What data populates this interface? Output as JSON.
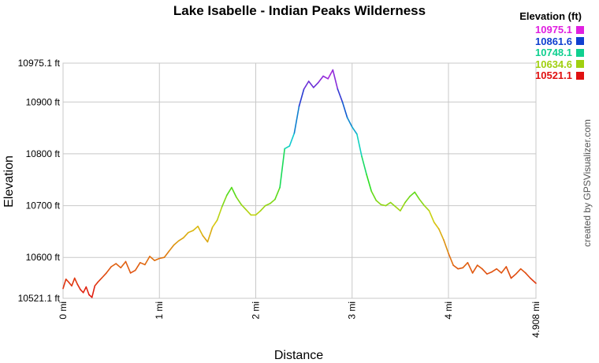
{
  "page": {
    "title": "Lake Isabelle - Indian Peaks Wilderness",
    "credit": "created by GPSVisualizer.com"
  },
  "legend": {
    "title": "Elevation (ft)",
    "items": [
      {
        "label": "10975.1",
        "color": "#e020e0"
      },
      {
        "label": "10861.6",
        "color": "#1040d0"
      },
      {
        "label": "10748.1",
        "color": "#10d090"
      },
      {
        "label": "10634.6",
        "color": "#a0d010"
      },
      {
        "label": "10521.1",
        "color": "#e01010"
      }
    ]
  },
  "chart_data": {
    "type": "line",
    "title": "Lake Isabelle - Indian Peaks Wilderness",
    "xlabel": "Distance",
    "ylabel": "Elevation",
    "xlim": [
      0,
      4.908
    ],
    "ylim": [
      10521.1,
      10975.1
    ],
    "x_ticks": [
      {
        "value": 0,
        "label": "0 mi"
      },
      {
        "value": 1,
        "label": "1 mi"
      },
      {
        "value": 2,
        "label": "2 mi"
      },
      {
        "value": 3,
        "label": "3 mi"
      },
      {
        "value": 4,
        "label": "4 mi"
      },
      {
        "value": 4.908,
        "label": "4.908 mi"
      }
    ],
    "y_ticks": [
      {
        "value": 10521.1,
        "label": "10521.1 ft"
      },
      {
        "value": 10600,
        "label": "10600 ft"
      },
      {
        "value": 10700,
        "label": "10700 ft"
      },
      {
        "value": 10800,
        "label": "10800 ft"
      },
      {
        "value": 10900,
        "label": "10900 ft"
      },
      {
        "value": 10975.1,
        "label": "10975.1 ft"
      }
    ],
    "grid": true,
    "legend_position": "top-right",
    "color_scale": {
      "min": 10521.1,
      "max": 10975.1,
      "stops": [
        "#e01010",
        "#e07010",
        "#d8d010",
        "#20e020",
        "#10d0d0",
        "#1040d0",
        "#e020e0"
      ]
    },
    "series": [
      {
        "x": [
          0.0,
          0.03,
          0.06,
          0.09,
          0.12,
          0.15,
          0.18,
          0.21,
          0.24,
          0.27,
          0.3,
          0.33,
          0.36,
          0.4,
          0.45,
          0.5,
          0.55,
          0.6,
          0.65,
          0.7,
          0.75,
          0.8,
          0.85,
          0.9,
          0.95,
          1.0,
          1.05,
          1.1,
          1.15,
          1.2,
          1.25,
          1.3,
          1.35,
          1.4,
          1.45,
          1.5,
          1.55,
          1.6,
          1.65,
          1.7,
          1.75,
          1.8,
          1.85,
          1.9,
          1.95,
          2.0,
          2.05,
          2.1,
          2.15,
          2.2,
          2.25,
          2.3,
          2.35,
          2.4,
          2.45,
          2.5,
          2.55,
          2.6,
          2.65,
          2.7,
          2.75,
          2.8,
          2.85,
          2.9,
          2.95,
          3.0,
          3.05,
          3.1,
          3.15,
          3.2,
          3.25,
          3.3,
          3.35,
          3.4,
          3.45,
          3.5,
          3.55,
          3.6,
          3.65,
          3.7,
          3.75,
          3.8,
          3.85,
          3.9,
          3.95,
          4.0,
          4.05,
          4.1,
          4.15,
          4.2,
          4.25,
          4.3,
          4.35,
          4.4,
          4.45,
          4.5,
          4.55,
          4.6,
          4.65,
          4.7,
          4.75,
          4.8,
          4.85,
          4.908
        ],
        "y": [
          10540,
          10558,
          10552,
          10545,
          10560,
          10548,
          10538,
          10532,
          10543,
          10528,
          10523,
          10545,
          10552,
          10560,
          10570,
          10582,
          10588,
          10580,
          10592,
          10570,
          10575,
          10590,
          10586,
          10602,
          10594,
          10598,
          10600,
          10612,
          10624,
          10632,
          10638,
          10648,
          10652,
          10660,
          10642,
          10630,
          10658,
          10672,
          10698,
          10720,
          10735,
          10716,
          10702,
          10692,
          10682,
          10682,
          10690,
          10700,
          10704,
          10712,
          10735,
          10810,
          10815,
          10840,
          10892,
          10925,
          10940,
          10928,
          10938,
          10950,
          10945,
          10962,
          10925,
          10900,
          10870,
          10852,
          10838,
          10795,
          10760,
          10728,
          10710,
          10702,
          10700,
          10706,
          10698,
          10690,
          10706,
          10718,
          10726,
          10712,
          10700,
          10690,
          10668,
          10655,
          10634,
          10608,
          10585,
          10578,
          10580,
          10590,
          10570,
          10585,
          10578,
          10568,
          10572,
          10578,
          10570,
          10582,
          10560,
          10568,
          10578,
          10570,
          10560,
          10550
        ]
      }
    ]
  }
}
